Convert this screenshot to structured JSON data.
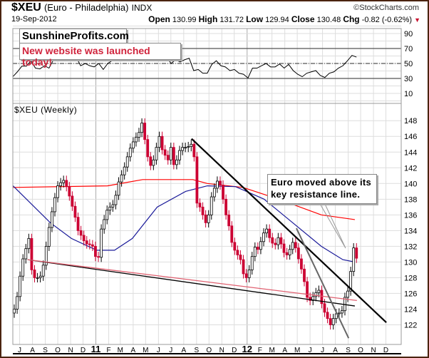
{
  "header": {
    "symbol": "$XEU",
    "name": "(Euro - Philadelphia)",
    "exchange": "INDX",
    "copyright": "©StockCharts.com",
    "date": "19-Sep-2012",
    "open_label": "Open",
    "open": "130.99",
    "high_label": "High",
    "high": "131.72",
    "low_label": "Low",
    "low": "129.94",
    "close_label": "Close",
    "close": "130.48",
    "chg_label": "Chg",
    "chg": "-0.82 (-0.62%)",
    "chg_direction": "down"
  },
  "annotations": {
    "brand": "SunshineProfits.com",
    "launch": "New website was launched today!",
    "callout_line1": "Euro moved above its",
    "callout_line2": "key resistance line."
  },
  "colors": {
    "up": "#000000",
    "down": "#cc0033",
    "ma_long": "#ff0000",
    "ma_short": "#1a1a99",
    "trend": "#000000",
    "trend_pink": "#e06070",
    "trend_grey": "#666666",
    "border": "#4b2410",
    "accent": "#d0243c"
  },
  "chart_data": [
    {
      "type": "line",
      "panel": "indicator (top)",
      "ylim": [
        0,
        100
      ],
      "y_ticks": [
        90,
        70,
        50,
        30,
        10
      ],
      "reference_lines": [
        70,
        50,
        30
      ],
      "grid": true,
      "values": [
        32.3,
        38.8,
        46.4,
        46.4,
        53.6,
        43.8,
        42.8,
        47,
        43.8,
        55,
        63,
        65,
        62,
        60,
        58.5,
        47,
        50,
        47,
        45.4,
        50,
        42,
        50,
        54,
        53.6,
        57,
        60,
        62,
        65,
        63,
        60,
        57,
        53.6,
        57,
        53.6,
        58.5,
        50,
        55,
        52,
        55,
        57,
        40.5,
        42,
        37,
        37,
        48.7,
        53.6,
        47,
        45.4,
        40.5,
        42,
        37,
        35.6,
        30.6,
        43.8,
        43.8,
        47,
        50,
        45.4,
        45.4,
        49.3,
        43.8,
        48.7,
        40.5,
        35.6,
        32.3,
        37,
        38.8,
        40.5,
        34,
        31.3,
        37,
        38.8,
        43.8,
        47,
        53.6,
        60.8,
        58.5
      ]
    },
    {
      "type": "candlestick",
      "title": "$XEU (Weekly)",
      "start_date": "2010-06-18",
      "interval": "weekly",
      "ylim": [
        119.5,
        150.2
      ],
      "y_ticks": [
        122,
        124,
        126,
        128,
        130,
        132,
        134,
        136,
        138,
        140,
        142,
        144,
        146,
        148
      ],
      "grid": true,
      "x_ticks": [
        {
          "label": "J",
          "date": "2010-07-01"
        },
        {
          "label": "A",
          "date": "2010-08-01"
        },
        {
          "label": "S",
          "date": "2010-09-01"
        },
        {
          "label": "O",
          "date": "2010-10-01"
        },
        {
          "label": "N",
          "date": "2010-11-01"
        },
        {
          "label": "D",
          "date": "2010-12-01"
        },
        {
          "label": "11",
          "date": "2011-01-01",
          "major": true
        },
        {
          "label": "F",
          "date": "2011-02-01"
        },
        {
          "label": "M",
          "date": "2011-03-01"
        },
        {
          "label": "A",
          "date": "2011-04-01"
        },
        {
          "label": "M",
          "date": "2011-05-01"
        },
        {
          "label": "J",
          "date": "2011-06-01"
        },
        {
          "label": "J",
          "date": "2011-07-01"
        },
        {
          "label": "A",
          "date": "2011-08-01"
        },
        {
          "label": "S",
          "date": "2011-09-01"
        },
        {
          "label": "O",
          "date": "2011-10-01"
        },
        {
          "label": "N",
          "date": "2011-11-01"
        },
        {
          "label": "D",
          "date": "2011-12-01"
        },
        {
          "label": "12",
          "date": "2012-01-01",
          "major": true
        },
        {
          "label": "F",
          "date": "2012-02-01"
        },
        {
          "label": "M",
          "date": "2012-03-01"
        },
        {
          "label": "A",
          "date": "2012-04-01"
        },
        {
          "label": "M",
          "date": "2012-05-01"
        },
        {
          "label": "J",
          "date": "2012-06-01"
        },
        {
          "label": "J",
          "date": "2012-07-01"
        },
        {
          "label": "A",
          "date": "2012-08-01"
        },
        {
          "label": "S",
          "date": "2012-09-01"
        },
        {
          "label": "O",
          "date": "2012-10-01"
        },
        {
          "label": "N",
          "date": "2012-11-01"
        },
        {
          "label": "D",
          "date": "2012-12-01"
        }
      ],
      "close": [
        124,
        125.6,
        128.2,
        130.4,
        131.7,
        133,
        129,
        128,
        128,
        128.2,
        129.6,
        132,
        134.4,
        136.4,
        138.2,
        139.7,
        140.1,
        140.4,
        139.6,
        138.4,
        137.1,
        135.7,
        134,
        133.4,
        132.7,
        132.3,
        132.2,
        132,
        130.7,
        130.6,
        134.2,
        135.4,
        136.6,
        137,
        137.3,
        138.5,
        140.2,
        141.1,
        142.1,
        143.4,
        144.5,
        145.3,
        145.9,
        146.5,
        147.7,
        145.6,
        143.4,
        142.3,
        143,
        144.6,
        146,
        144.3,
        143.6,
        143,
        144.6,
        142.4,
        143,
        144.2,
        144.6,
        144.6,
        144.7,
        145,
        143.4,
        137.5,
        137,
        136,
        135,
        136,
        138.3,
        139.4,
        140.3,
        139.8,
        138,
        136,
        134.6,
        132.5,
        131.5,
        130.9,
        130.3,
        128.5,
        128,
        129,
        130.7,
        131.9,
        131.6,
        132.6,
        133.7,
        134.2,
        133.1,
        132.4,
        132.2,
        133.1,
        132.3,
        131.2,
        130.9,
        131.6,
        132.5,
        131.8,
        130.4,
        129.1,
        127.5,
        125.5,
        125.1,
        125.6,
        126.1,
        126.4,
        124.7,
        123.6,
        122.8,
        122,
        122.8,
        123.4,
        123.5,
        123.8,
        125.5,
        126.3,
        128.8,
        131.8,
        130.48
      ],
      "moving_averages": [
        {
          "color": "#ff0000",
          "points": [
            [
              "2010-06-15",
              139.5
            ],
            [
              "2011-01-29",
              139.7
            ],
            [
              "2011-04-24",
              140.5
            ],
            [
              "2011-08-23",
              140.5
            ],
            [
              "2011-09-27",
              140
            ],
            [
              "2011-12-22",
              139.5
            ],
            [
              "2012-03-17",
              138
            ],
            [
              "2012-06-28",
              136
            ],
            [
              "2012-09-17",
              135.4
            ]
          ]
        },
        {
          "color": "#1a1a99",
          "points": [
            [
              "2010-06-15",
              139.7
            ],
            [
              "2010-09-13",
              135
            ],
            [
              "2010-11-03",
              133
            ],
            [
              "2011-01-03",
              131.5
            ],
            [
              "2011-02-15",
              131.5
            ],
            [
              "2011-03-30",
              133
            ],
            [
              "2011-05-29",
              137
            ],
            [
              "2011-08-06",
              139
            ],
            [
              "2011-09-27",
              139.7
            ],
            [
              "2011-12-04",
              139.6
            ],
            [
              "2012-02-11",
              138
            ],
            [
              "2012-04-20",
              135
            ],
            [
              "2012-06-28",
              132
            ],
            [
              "2012-08-19",
              130.3
            ],
            [
              "2012-09-17",
              130
            ]
          ]
        }
      ],
      "trendlines": [
        {
          "color": "#000000",
          "points": [
            [
              "2011-08-20",
              145.7
            ],
            [
              "2012-12-02",
              122.3
            ]
          ]
        },
        {
          "color": "#000000",
          "points": [
            [
              "2010-07-20",
              130.3
            ],
            [
              "2012-09-17",
              124.4
            ]
          ]
        },
        {
          "color": "#e06070",
          "points": [
            [
              "2010-07-20",
              130.3
            ],
            [
              "2012-09-22",
              125.1
            ]
          ]
        },
        {
          "color": "#666666",
          "points": [
            [
              "2012-04-29",
              134.3
            ],
            [
              "2012-09-02",
              120.3
            ]
          ]
        }
      ]
    }
  ]
}
